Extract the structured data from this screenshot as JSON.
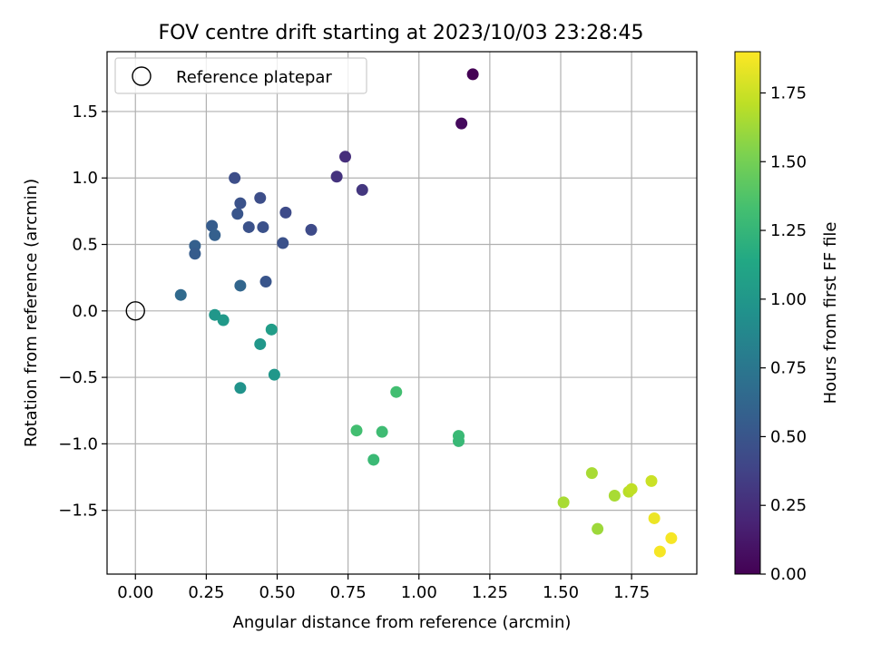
{
  "chart_data": {
    "type": "scatter",
    "title": "FOV centre drift starting at 2023/10/03 23:28:45",
    "xlabel": "Angular distance from reference (arcmin)",
    "ylabel": "Rotation from reference (arcmin)",
    "colorbar_label": "Hours from first FF file",
    "colormap": "viridis",
    "xlim": [
      -0.1,
      1.98
    ],
    "ylim": [
      -1.98,
      1.95
    ],
    "clim": [
      0,
      1.9
    ],
    "xticks": [
      0.0,
      0.25,
      0.5,
      0.75,
      1.0,
      1.25,
      1.5,
      1.75
    ],
    "xtick_labels": [
      "0.00",
      "0.25",
      "0.50",
      "0.75",
      "1.00",
      "1.25",
      "1.50",
      "1.75"
    ],
    "yticks": [
      -1.5,
      -1.0,
      -0.5,
      0.0,
      0.5,
      1.0,
      1.5
    ],
    "ytick_labels": [
      "−1.5",
      "−1.0",
      "−0.5",
      "0.0",
      "0.5",
      "1.0",
      "1.5"
    ],
    "cticks": [
      0.0,
      0.25,
      0.5,
      0.75,
      1.0,
      1.25,
      1.5,
      1.75
    ],
    "ctick_labels": [
      "0.00",
      "0.25",
      "0.50",
      "0.75",
      "1.00",
      "1.25",
      "1.50",
      "1.75"
    ],
    "grid": true,
    "legend": {
      "placement": "upper-left",
      "label": "Reference platepar",
      "marker": "open-circle"
    },
    "reference_point": {
      "x": 0.0,
      "y": 0.0
    },
    "points": [
      {
        "x": 1.19,
        "y": 1.78,
        "hours": 0.0
      },
      {
        "x": 1.15,
        "y": 1.41,
        "hours": 0.05
      },
      {
        "x": 0.74,
        "y": 1.16,
        "hours": 0.25
      },
      {
        "x": 0.71,
        "y": 1.01,
        "hours": 0.28
      },
      {
        "x": 0.8,
        "y": 0.91,
        "hours": 0.3
      },
      {
        "x": 0.35,
        "y": 1.0,
        "hours": 0.45
      },
      {
        "x": 0.44,
        "y": 0.85,
        "hours": 0.45
      },
      {
        "x": 0.37,
        "y": 0.81,
        "hours": 0.48
      },
      {
        "x": 0.53,
        "y": 0.74,
        "hours": 0.43
      },
      {
        "x": 0.36,
        "y": 0.73,
        "hours": 0.5
      },
      {
        "x": 0.27,
        "y": 0.64,
        "hours": 0.55
      },
      {
        "x": 0.4,
        "y": 0.63,
        "hours": 0.48
      },
      {
        "x": 0.45,
        "y": 0.63,
        "hours": 0.47
      },
      {
        "x": 0.62,
        "y": 0.61,
        "hours": 0.43
      },
      {
        "x": 0.28,
        "y": 0.57,
        "hours": 0.58
      },
      {
        "x": 0.52,
        "y": 0.51,
        "hours": 0.47
      },
      {
        "x": 0.21,
        "y": 0.49,
        "hours": 0.58
      },
      {
        "x": 0.21,
        "y": 0.43,
        "hours": 0.55
      },
      {
        "x": 0.46,
        "y": 0.22,
        "hours": 0.5
      },
      {
        "x": 0.37,
        "y": 0.19,
        "hours": 0.62
      },
      {
        "x": 0.16,
        "y": 0.12,
        "hours": 0.65
      },
      {
        "x": 0.28,
        "y": -0.03,
        "hours": 1.0
      },
      {
        "x": 0.31,
        "y": -0.07,
        "hours": 1.02
      },
      {
        "x": 0.48,
        "y": -0.14,
        "hours": 1.05
      },
      {
        "x": 0.44,
        "y": -0.25,
        "hours": 1.0
      },
      {
        "x": 0.49,
        "y": -0.48,
        "hours": 1.0
      },
      {
        "x": 0.37,
        "y": -0.58,
        "hours": 0.97
      },
      {
        "x": 0.92,
        "y": -0.61,
        "hours": 1.32
      },
      {
        "x": 0.78,
        "y": -0.9,
        "hours": 1.32
      },
      {
        "x": 0.87,
        "y": -0.91,
        "hours": 1.3
      },
      {
        "x": 0.84,
        "y": -1.12,
        "hours": 1.28
      },
      {
        "x": 1.14,
        "y": -0.94,
        "hours": 1.28
      },
      {
        "x": 1.14,
        "y": -0.98,
        "hours": 1.27
      },
      {
        "x": 1.51,
        "y": -1.44,
        "hours": 1.65
      },
      {
        "x": 1.61,
        "y": -1.22,
        "hours": 1.65
      },
      {
        "x": 1.63,
        "y": -1.64,
        "hours": 1.62
      },
      {
        "x": 1.69,
        "y": -1.39,
        "hours": 1.65
      },
      {
        "x": 1.74,
        "y": -1.36,
        "hours": 1.7
      },
      {
        "x": 1.75,
        "y": -1.34,
        "hours": 1.72
      },
      {
        "x": 1.82,
        "y": -1.28,
        "hours": 1.75
      },
      {
        "x": 1.83,
        "y": -1.56,
        "hours": 1.85
      },
      {
        "x": 1.85,
        "y": -1.81,
        "hours": 1.88
      },
      {
        "x": 1.89,
        "y": -1.71,
        "hours": 1.88
      }
    ]
  }
}
